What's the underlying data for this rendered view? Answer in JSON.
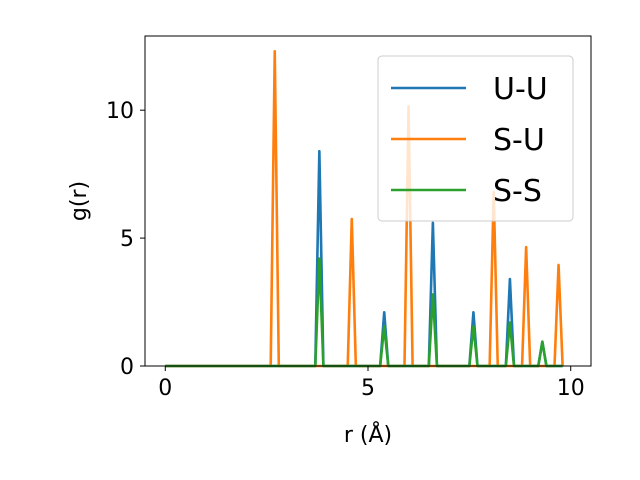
{
  "chart_data": {
    "type": "line",
    "xlabel": "r (Å)",
    "ylabel": "g(r)",
    "xlim": [
      -0.5,
      10.5
    ],
    "ylim": [
      0,
      12.9
    ],
    "xticks": [
      0,
      5,
      10
    ],
    "xtick_labels": [
      "0",
      "5",
      "10"
    ],
    "yticks": [
      0,
      5,
      10
    ],
    "ytick_labels": [
      "0",
      "5",
      "10"
    ],
    "grid": false,
    "legend_position": "top-right",
    "series": [
      {
        "name": "U-U",
        "color": "#1f77b4",
        "x": [
          0,
          3.7,
          3.8,
          3.9,
          5.3,
          5.4,
          5.5,
          6.5,
          6.6,
          6.7,
          7.5,
          7.6,
          7.7,
          8.4,
          8.5,
          8.6,
          9.2,
          9.3,
          9.4,
          9.8
        ],
        "y": [
          0,
          0,
          8.4,
          0,
          0,
          2.1,
          0,
          0,
          5.6,
          0,
          0,
          2.1,
          0,
          0,
          3.4,
          0,
          0,
          0.95,
          0,
          0
        ]
      },
      {
        "name": "S-U",
        "color": "#ff7f0e",
        "x": [
          0,
          2.6,
          2.7,
          2.8,
          4.5,
          4.6,
          4.7,
          5.9,
          6.0,
          6.1,
          8.0,
          8.1,
          8.2,
          8.8,
          8.9,
          9.0,
          9.6,
          9.7,
          9.8
        ],
        "y": [
          0,
          0,
          12.3,
          0,
          0,
          5.75,
          0,
          0,
          10.15,
          0,
          0,
          6.8,
          0,
          0,
          4.65,
          0,
          0,
          3.95,
          0
        ]
      },
      {
        "name": "S-S",
        "color": "#2ca02c",
        "x": [
          0,
          3.7,
          3.8,
          3.9,
          5.3,
          5.4,
          5.5,
          6.5,
          6.6,
          6.7,
          7.5,
          7.6,
          7.7,
          8.4,
          8.5,
          8.6,
          9.2,
          9.3,
          9.4,
          9.8
        ],
        "y": [
          0,
          0,
          4.2,
          0,
          0,
          1.55,
          0,
          0,
          2.8,
          0,
          0,
          1.55,
          0,
          0,
          1.7,
          0,
          0,
          0.95,
          0,
          0
        ]
      }
    ]
  }
}
